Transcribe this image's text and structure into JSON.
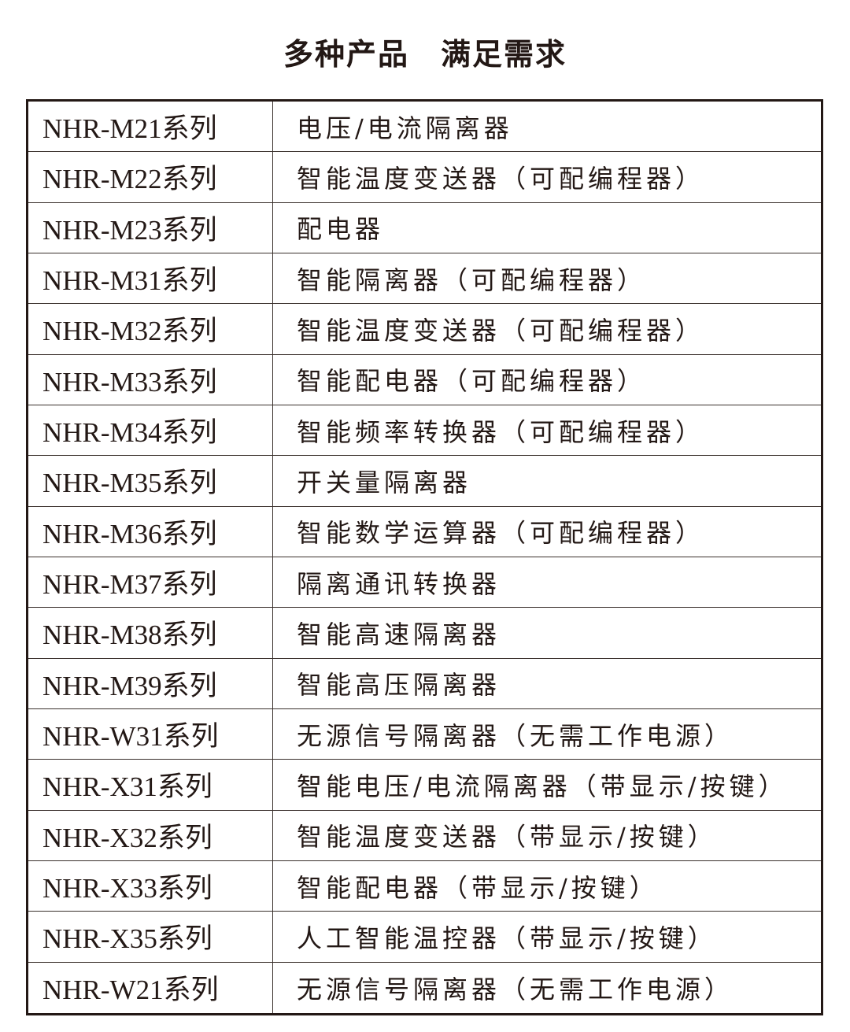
{
  "title": "多种产品　满足需求",
  "rows": [
    {
      "series": "NHR-M21系列",
      "desc": "电压/电流隔离器"
    },
    {
      "series": "NHR-M22系列",
      "desc": "智能温度变送器（可配编程器）"
    },
    {
      "series": "NHR-M23系列",
      "desc": "配电器"
    },
    {
      "series": "NHR-M31系列",
      "desc": "智能隔离器（可配编程器）"
    },
    {
      "series": "NHR-M32系列",
      "desc": "智能温度变送器（可配编程器）"
    },
    {
      "series": "NHR-M33系列",
      "desc": "智能配电器（可配编程器）"
    },
    {
      "series": "NHR-M34系列",
      "desc": "智能频率转换器（可配编程器）"
    },
    {
      "series": "NHR-M35系列",
      "desc": "开关量隔离器"
    },
    {
      "series": "NHR-M36系列",
      "desc": "智能数学运算器（可配编程器）"
    },
    {
      "series": "NHR-M37系列",
      "desc": "隔离通讯转换器"
    },
    {
      "series": "NHR-M38系列",
      "desc": "智能高速隔离器"
    },
    {
      "series": "NHR-M39系列",
      "desc": "智能高压隔离器"
    },
    {
      "series": "NHR-W31系列",
      "desc": "无源信号隔离器（无需工作电源）"
    },
    {
      "series": "NHR-X31系列",
      "desc": "智能电压/电流隔离器（带显示/按键）"
    },
    {
      "series": "NHR-X32系列",
      "desc": "智能温度变送器（带显示/按键）"
    },
    {
      "series": "NHR-X33系列",
      "desc": "智能配电器（带显示/按键）"
    },
    {
      "series": "NHR-X35系列",
      "desc": "人工智能温控器（带显示/按键）"
    },
    {
      "series": "NHR-W21系列",
      "desc": "无源信号隔离器（无需工作电源）"
    }
  ]
}
